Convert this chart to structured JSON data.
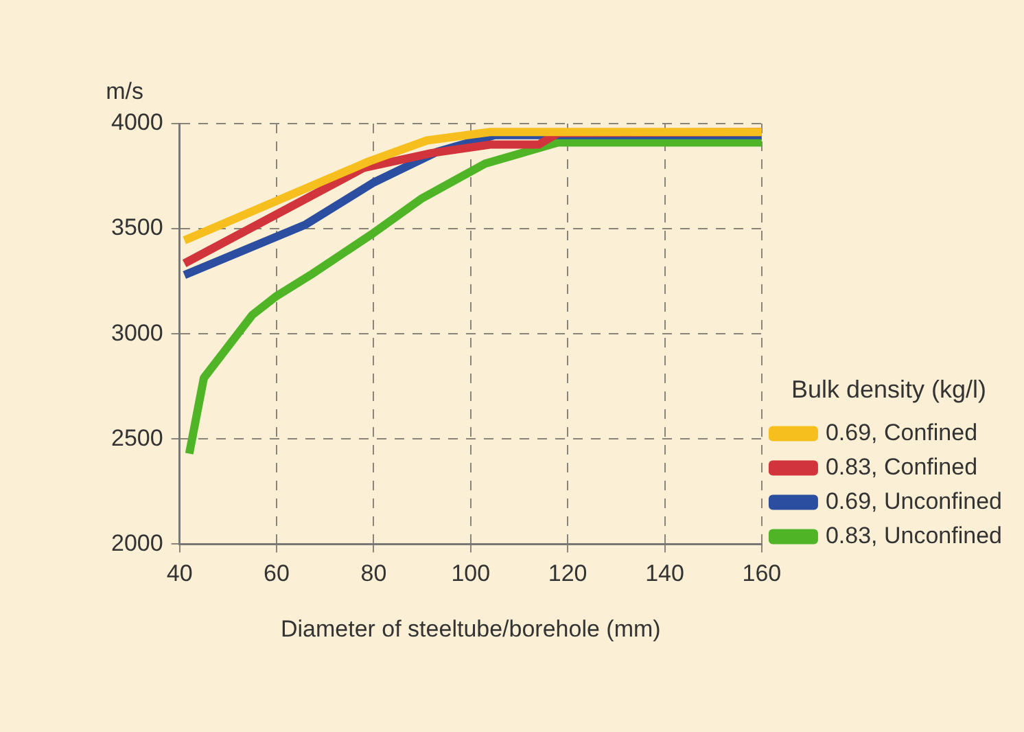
{
  "chart_data": {
    "type": "line",
    "xlabel": "Diameter of steeltube/borehole (mm)",
    "ylabel": "m/s",
    "legend_title": "Bulk density (kg/l)",
    "legend": "right",
    "grid": true,
    "marker": "none",
    "line_style": "solid",
    "xlim": [
      40,
      160
    ],
    "xticks": [
      40,
      60,
      80,
      100,
      120,
      140,
      160
    ],
    "ylim": [
      2000,
      4000
    ],
    "yticks": [
      2000,
      2500,
      3000,
      3500,
      4000
    ],
    "series": [
      {
        "name": "0.69, Confined",
        "color": "#f7bf1e",
        "x": [
          41,
          79,
          91,
          104,
          160
        ],
        "values": [
          3445,
          3820,
          3920,
          3960,
          3960
        ]
      },
      {
        "name": "0.83, Confined",
        "color": "#d2343b",
        "x": [
          41,
          78,
          92,
          104,
          114,
          118,
          160
        ],
        "values": [
          3335,
          3790,
          3860,
          3900,
          3900,
          3955,
          3960
        ]
      },
      {
        "name": "0.69, Unconfined",
        "color": "#2b4ea0",
        "x": [
          41,
          66,
          80,
          93,
          105,
          160
        ],
        "values": [
          3280,
          3520,
          3720,
          3865,
          3945,
          3945
        ]
      },
      {
        "name": "0.83, Unconfined",
        "color": "#4fb526",
        "x": [
          42,
          45,
          55,
          60,
          67,
          80,
          90,
          103,
          118,
          160
        ],
        "values": [
          2430,
          2790,
          3090,
          3180,
          3280,
          3480,
          3645,
          3810,
          3910,
          3910
        ]
      }
    ]
  }
}
